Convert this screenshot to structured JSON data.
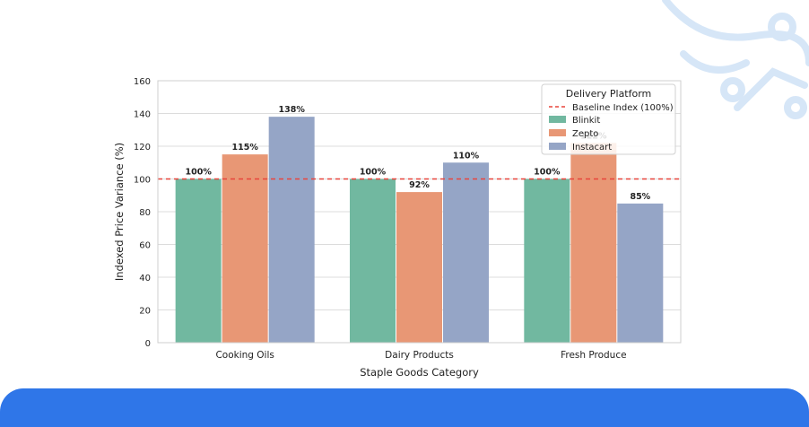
{
  "colors": {
    "blinkit": "#71b8a0",
    "zepto": "#e89775",
    "instacart": "#95a5c6",
    "baseline": "#e8453c",
    "band": "#2f76e8",
    "decor": "#d6e6f7"
  },
  "chart_data": {
    "type": "bar",
    "categories": [
      "Cooking Oils",
      "Dairy Products",
      "Fresh Produce"
    ],
    "series": [
      {
        "name": "Blinkit",
        "values": [
          100,
          100,
          100
        ],
        "labels": [
          "100%",
          "100%",
          "100%"
        ]
      },
      {
        "name": "Zepto",
        "values": [
          115,
          92,
          122
        ],
        "labels": [
          "115%",
          "92%",
          "122%"
        ]
      },
      {
        "name": "Instacart",
        "values": [
          138,
          110,
          85
        ],
        "labels": [
          "138%",
          "110%",
          "85%"
        ]
      }
    ],
    "baseline": {
      "name": "Baseline Index (100%)",
      "value": 100,
      "style": "dashed"
    },
    "title": "",
    "xlabel": "Staple Goods Category",
    "ylabel": "Indexed Price Variance (%)",
    "ylim": [
      0,
      160
    ],
    "yticks": [
      0,
      20,
      40,
      60,
      80,
      100,
      120,
      140,
      160
    ],
    "grid": true,
    "legend": {
      "title": "Delivery Platform",
      "position": "top-right"
    }
  }
}
